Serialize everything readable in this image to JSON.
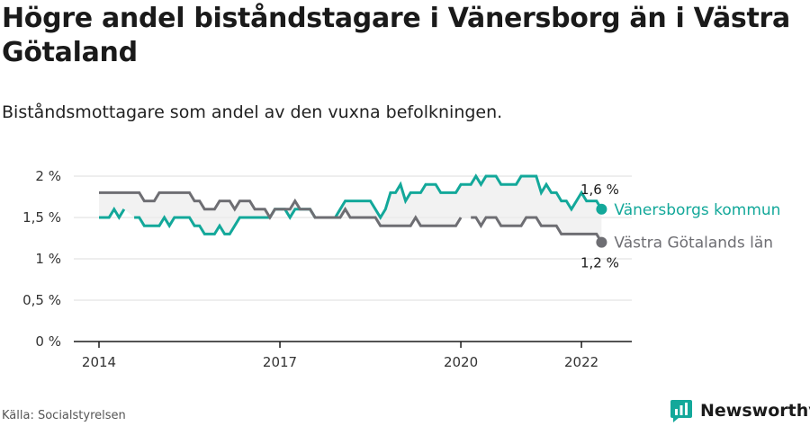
{
  "title": "Högre andel biståndstagare i Vänersborg än i Västra Götaland",
  "subtitle": "Biståndsmottagare som andel av den vuxna befolkningen.",
  "source": "Källa: Socialstyrelsen",
  "logo_text": "Newsworthy",
  "colors": {
    "teal": "#13a89a",
    "gray": "#6e6e73",
    "grid": "#dcdcdc",
    "band": "#ececec"
  },
  "chart_data": {
    "type": "line",
    "title": "Högre andel biståndstagare i Vänersborg än i Västra Götaland",
    "subtitle": "Biståndsmottagare som andel av den vuxna befolkningen.",
    "xlabel": "",
    "ylabel": "",
    "x_range": [
      "2014-01",
      "2022-06"
    ],
    "ylim": [
      0,
      2
    ],
    "y_ticks": [
      0,
      0.5,
      1,
      1.5,
      2
    ],
    "y_tick_labels": [
      "0 %",
      "0,5 %",
      "1 %",
      "1,5 %",
      "2 %"
    ],
    "x_ticks": [
      "2014-01",
      "2017-01",
      "2020-01",
      "2022-01"
    ],
    "x_tick_labels": [
      "2014",
      "2017",
      "2020",
      "2022"
    ],
    "grid": true,
    "series": [
      {
        "name": "Vänersborgs kommun",
        "color": "#13a89a",
        "end_label": "1,6 %",
        "points": [
          [
            "2014-01",
            1.5
          ],
          [
            "2014-02",
            1.5
          ],
          [
            "2014-03",
            1.5
          ],
          [
            "2014-04",
            1.6
          ],
          [
            "2014-05",
            1.5
          ],
          [
            "2014-06",
            1.6
          ],
          [
            "2014-07",
            null
          ],
          [
            "2014-08",
            1.5
          ],
          [
            "2014-09",
            1.5
          ],
          [
            "2014-10",
            1.4
          ],
          [
            "2014-11",
            1.4
          ],
          [
            "2014-12",
            1.4
          ],
          [
            "2015-01",
            1.4
          ],
          [
            "2015-02",
            1.5
          ],
          [
            "2015-03",
            1.4
          ],
          [
            "2015-04",
            1.5
          ],
          [
            "2015-05",
            1.5
          ],
          [
            "2015-06",
            1.5
          ],
          [
            "2015-07",
            1.5
          ],
          [
            "2015-08",
            1.4
          ],
          [
            "2015-09",
            1.4
          ],
          [
            "2015-10",
            1.3
          ],
          [
            "2015-11",
            1.3
          ],
          [
            "2015-12",
            1.3
          ],
          [
            "2016-01",
            1.4
          ],
          [
            "2016-02",
            1.3
          ],
          [
            "2016-03",
            1.3
          ],
          [
            "2016-04",
            1.4
          ],
          [
            "2016-05",
            1.5
          ],
          [
            "2016-06",
            1.5
          ],
          [
            "2016-07",
            1.5
          ],
          [
            "2016-08",
            1.5
          ],
          [
            "2016-09",
            1.5
          ],
          [
            "2016-10",
            1.5
          ],
          [
            "2016-11",
            1.5
          ],
          [
            "2016-12",
            1.6
          ],
          [
            "2017-01",
            1.6
          ],
          [
            "2017-02",
            1.6
          ],
          [
            "2017-03",
            1.5
          ],
          [
            "2017-04",
            1.6
          ],
          [
            "2017-05",
            1.6
          ],
          [
            "2017-06",
            1.6
          ],
          [
            "2017-07",
            1.6
          ],
          [
            "2017-08",
            1.5
          ],
          [
            "2017-09",
            1.5
          ],
          [
            "2017-10",
            1.5
          ],
          [
            "2017-11",
            1.5
          ],
          [
            "2017-12",
            1.5
          ],
          [
            "2018-01",
            1.6
          ],
          [
            "2018-02",
            1.7
          ],
          [
            "2018-03",
            1.7
          ],
          [
            "2018-04",
            1.7
          ],
          [
            "2018-05",
            1.7
          ],
          [
            "2018-06",
            1.7
          ],
          [
            "2018-07",
            1.7
          ],
          [
            "2018-08",
            1.6
          ],
          [
            "2018-09",
            1.5
          ],
          [
            "2018-10",
            1.6
          ],
          [
            "2018-11",
            1.8
          ],
          [
            "2018-12",
            1.8
          ],
          [
            "2019-01",
            1.9
          ],
          [
            "2019-02",
            1.7
          ],
          [
            "2019-03",
            1.8
          ],
          [
            "2019-04",
            1.8
          ],
          [
            "2019-05",
            1.8
          ],
          [
            "2019-06",
            1.9
          ],
          [
            "2019-07",
            1.9
          ],
          [
            "2019-08",
            1.9
          ],
          [
            "2019-09",
            1.8
          ],
          [
            "2019-10",
            1.8
          ],
          [
            "2019-11",
            1.8
          ],
          [
            "2019-12",
            1.8
          ],
          [
            "2020-01",
            1.9
          ],
          [
            "2020-02",
            1.9
          ],
          [
            "2020-03",
            1.9
          ],
          [
            "2020-04",
            2.0
          ],
          [
            "2020-05",
            1.9
          ],
          [
            "2020-06",
            2.0
          ],
          [
            "2020-07",
            2.0
          ],
          [
            "2020-08",
            2.0
          ],
          [
            "2020-09",
            1.9
          ],
          [
            "2020-10",
            1.9
          ],
          [
            "2020-11",
            1.9
          ],
          [
            "2020-12",
            1.9
          ],
          [
            "2021-01",
            2.0
          ],
          [
            "2021-02",
            2.0
          ],
          [
            "2021-03",
            2.0
          ],
          [
            "2021-04",
            2.0
          ],
          [
            "2021-05",
            1.8
          ],
          [
            "2021-06",
            1.9
          ],
          [
            "2021-07",
            1.8
          ],
          [
            "2021-08",
            1.8
          ],
          [
            "2021-09",
            1.7
          ],
          [
            "2021-10",
            1.7
          ],
          [
            "2021-11",
            1.6
          ],
          [
            "2021-12",
            1.7
          ],
          [
            "2022-01",
            1.8
          ],
          [
            "2022-02",
            1.7
          ],
          [
            "2022-03",
            1.7
          ],
          [
            "2022-04",
            1.7
          ],
          [
            "2022-05",
            1.6
          ]
        ]
      },
      {
        "name": "Västra Götalands län",
        "color": "#6e6e73",
        "end_label": "1,2 %",
        "points": [
          [
            "2014-01",
            1.8
          ],
          [
            "2014-02",
            1.8
          ],
          [
            "2014-03",
            1.8
          ],
          [
            "2014-04",
            1.8
          ],
          [
            "2014-05",
            1.8
          ],
          [
            "2014-06",
            1.8
          ],
          [
            "2014-07",
            1.8
          ],
          [
            "2014-08",
            1.8
          ],
          [
            "2014-09",
            1.8
          ],
          [
            "2014-10",
            1.7
          ],
          [
            "2014-11",
            1.7
          ],
          [
            "2014-12",
            1.7
          ],
          [
            "2015-01",
            1.8
          ],
          [
            "2015-02",
            1.8
          ],
          [
            "2015-03",
            1.8
          ],
          [
            "2015-04",
            1.8
          ],
          [
            "2015-05",
            1.8
          ],
          [
            "2015-06",
            1.8
          ],
          [
            "2015-07",
            1.8
          ],
          [
            "2015-08",
            1.7
          ],
          [
            "2015-09",
            1.7
          ],
          [
            "2015-10",
            1.6
          ],
          [
            "2015-11",
            1.6
          ],
          [
            "2015-12",
            1.6
          ],
          [
            "2016-01",
            1.7
          ],
          [
            "2016-02",
            1.7
          ],
          [
            "2016-03",
            1.7
          ],
          [
            "2016-04",
            1.6
          ],
          [
            "2016-05",
            1.7
          ],
          [
            "2016-06",
            1.7
          ],
          [
            "2016-07",
            1.7
          ],
          [
            "2016-08",
            1.6
          ],
          [
            "2016-09",
            1.6
          ],
          [
            "2016-10",
            1.6
          ],
          [
            "2016-11",
            1.5
          ],
          [
            "2016-12",
            1.6
          ],
          [
            "2017-01",
            1.6
          ],
          [
            "2017-02",
            1.6
          ],
          [
            "2017-03",
            1.6
          ],
          [
            "2017-04",
            1.7
          ],
          [
            "2017-05",
            1.6
          ],
          [
            "2017-06",
            1.6
          ],
          [
            "2017-07",
            1.6
          ],
          [
            "2017-08",
            1.5
          ],
          [
            "2017-09",
            1.5
          ],
          [
            "2017-10",
            1.5
          ],
          [
            "2017-11",
            1.5
          ],
          [
            "2017-12",
            1.5
          ],
          [
            "2018-01",
            1.5
          ],
          [
            "2018-02",
            1.6
          ],
          [
            "2018-03",
            1.5
          ],
          [
            "2018-04",
            1.5
          ],
          [
            "2018-05",
            1.5
          ],
          [
            "2018-06",
            1.5
          ],
          [
            "2018-07",
            1.5
          ],
          [
            "2018-08",
            1.5
          ],
          [
            "2018-09",
            1.4
          ],
          [
            "2018-10",
            1.4
          ],
          [
            "2018-11",
            1.4
          ],
          [
            "2018-12",
            1.4
          ],
          [
            "2019-01",
            1.4
          ],
          [
            "2019-02",
            1.4
          ],
          [
            "2019-03",
            1.4
          ],
          [
            "2019-04",
            1.5
          ],
          [
            "2019-05",
            1.4
          ],
          [
            "2019-06",
            1.4
          ],
          [
            "2019-07",
            1.4
          ],
          [
            "2019-08",
            1.4
          ],
          [
            "2019-09",
            1.4
          ],
          [
            "2019-10",
            1.4
          ],
          [
            "2019-11",
            1.4
          ],
          [
            "2019-12",
            1.4
          ],
          [
            "2020-01",
            1.5
          ],
          [
            "2020-02",
            null
          ],
          [
            "2020-03",
            1.5
          ],
          [
            "2020-04",
            1.5
          ],
          [
            "2020-05",
            1.4
          ],
          [
            "2020-06",
            1.5
          ],
          [
            "2020-07",
            1.5
          ],
          [
            "2020-08",
            1.5
          ],
          [
            "2020-09",
            1.4
          ],
          [
            "2020-10",
            1.4
          ],
          [
            "2020-11",
            1.4
          ],
          [
            "2020-12",
            1.4
          ],
          [
            "2021-01",
            1.4
          ],
          [
            "2021-02",
            1.5
          ],
          [
            "2021-03",
            1.5
          ],
          [
            "2021-04",
            1.5
          ],
          [
            "2021-05",
            1.4
          ],
          [
            "2021-06",
            1.4
          ],
          [
            "2021-07",
            1.4
          ],
          [
            "2021-08",
            1.4
          ],
          [
            "2021-09",
            1.3
          ],
          [
            "2021-10",
            1.3
          ],
          [
            "2021-11",
            1.3
          ],
          [
            "2021-12",
            1.3
          ],
          [
            "2022-01",
            1.3
          ],
          [
            "2022-02",
            1.3
          ],
          [
            "2022-03",
            1.3
          ],
          [
            "2022-04",
            1.3
          ],
          [
            "2022-05",
            1.2
          ]
        ]
      }
    ]
  }
}
